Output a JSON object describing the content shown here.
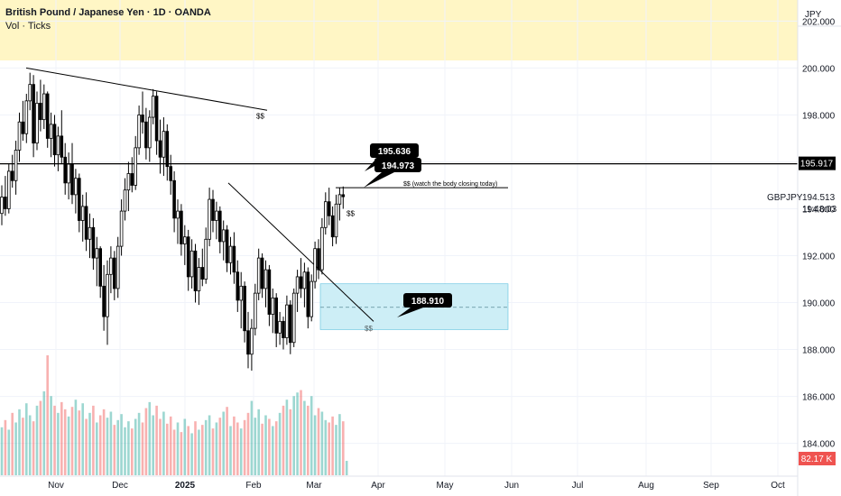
{
  "header": {
    "title": "British Pound / Japanese Yen · 1D · OANDA",
    "subtitle": "Vol · Ticks"
  },
  "axis": {
    "currency": "JPY"
  },
  "symbol": {
    "name": "GBPJPY",
    "price": "194.513",
    "countdown": "11:48:03"
  },
  "volume_badge": "82.17 K",
  "colors": {
    "up": "#26a69a",
    "down": "#ef5350",
    "highlight_band": "#fff6c5",
    "zone_fill": "#cdeef6",
    "zone_border": "#5bc0de",
    "callout_bg": "#000000",
    "line": "#000000"
  },
  "chart_data": {
    "type": "candlestick",
    "title": "British Pound / Japanese Yen · 1D · OANDA",
    "y_ticks": [
      184,
      186,
      188,
      190,
      192,
      194,
      196,
      198,
      200,
      202
    ],
    "ylim": [
      182.6,
      202.9
    ],
    "x_tick_labels": [
      "Nov",
      "Dec",
      "2025",
      "Feb",
      "Mar",
      "Apr",
      "May",
      "Jun",
      "Jul",
      "Aug",
      "Sep",
      "Oct"
    ],
    "horizontal_level": {
      "value": 195.917,
      "label": "195.917"
    },
    "callouts": [
      {
        "label": "195.636",
        "value": 195.636
      },
      {
        "label": "194.973",
        "value": 194.973
      },
      {
        "label": "188.910",
        "value": 188.91
      }
    ],
    "annotations": [
      "$$ (watch the body closing today)",
      "$$",
      "$$",
      "$$"
    ],
    "demand_zone": {
      "top": 190.8,
      "mid": 189.8,
      "bottom": 188.85
    },
    "candles": [
      [
        193.8,
        195.0,
        193.3,
        194.5
      ],
      [
        194.5,
        195.4,
        193.7,
        194.0
      ],
      [
        194.0,
        195.9,
        193.8,
        195.6
      ],
      [
        195.6,
        196.3,
        194.9,
        195.2
      ],
      [
        195.2,
        196.9,
        194.6,
        196.5
      ],
      [
        196.5,
        198.1,
        196.0,
        197.7
      ],
      [
        197.7,
        198.6,
        196.9,
        197.2
      ],
      [
        197.2,
        198.9,
        196.8,
        198.6
      ],
      [
        198.6,
        199.8,
        198.2,
        199.3
      ],
      [
        199.3,
        199.7,
        196.2,
        196.8
      ],
      [
        196.8,
        199.0,
        196.5,
        198.5
      ],
      [
        198.5,
        199.5,
        197.3,
        197.8
      ],
      [
        197.8,
        199.3,
        197.4,
        198.9
      ],
      [
        198.9,
        199.0,
        196.6,
        197.0
      ],
      [
        197.0,
        198.1,
        196.2,
        197.6
      ],
      [
        197.6,
        198.0,
        195.8,
        196.3
      ],
      [
        196.3,
        197.5,
        195.6,
        197.1
      ],
      [
        197.1,
        198.2,
        195.9,
        196.2
      ],
      [
        196.2,
        196.8,
        194.6,
        195.1
      ],
      [
        195.1,
        196.4,
        194.4,
        195.9
      ],
      [
        195.9,
        196.8,
        194.2,
        194.6
      ],
      [
        194.6,
        195.7,
        193.8,
        195.3
      ],
      [
        195.3,
        195.5,
        193.0,
        193.5
      ],
      [
        193.5,
        194.6,
        192.6,
        194.1
      ],
      [
        194.1,
        194.7,
        192.2,
        192.7
      ],
      [
        192.7,
        193.8,
        191.9,
        193.2
      ],
      [
        193.2,
        193.6,
        191.4,
        191.9
      ],
      [
        191.9,
        192.8,
        190.7,
        192.3
      ],
      [
        192.3,
        192.4,
        190.2,
        190.7
      ],
      [
        190.7,
        191.6,
        188.8,
        189.4
      ],
      [
        189.4,
        191.8,
        188.2,
        191.2
      ],
      [
        191.2,
        192.4,
        190.4,
        191.9
      ],
      [
        191.9,
        192.2,
        190.1,
        190.6
      ],
      [
        190.6,
        192.8,
        190.2,
        192.4
      ],
      [
        192.4,
        194.4,
        192.0,
        193.9
      ],
      [
        193.9,
        195.3,
        193.5,
        194.8
      ],
      [
        194.8,
        196.0,
        193.9,
        195.5
      ],
      [
        195.5,
        196.2,
        194.7,
        195.0
      ],
      [
        195.0,
        197.1,
        194.8,
        196.6
      ],
      [
        196.6,
        198.4,
        196.3,
        198.0
      ],
      [
        198.0,
        199.0,
        197.2,
        197.7
      ],
      [
        197.7,
        198.3,
        196.1,
        196.6
      ],
      [
        196.6,
        198.2,
        196.0,
        197.9
      ],
      [
        197.9,
        199.1,
        197.6,
        198.8
      ],
      [
        198.8,
        199.0,
        196.3,
        196.9
      ],
      [
        196.9,
        197.8,
        195.5,
        196.2
      ],
      [
        196.2,
        197.9,
        195.4,
        197.3
      ],
      [
        197.3,
        197.6,
        195.2,
        195.8
      ],
      [
        195.8,
        196.3,
        194.6,
        195.2
      ],
      [
        195.2,
        195.6,
        193.0,
        193.6
      ],
      [
        193.6,
        194.4,
        192.5,
        193.9
      ],
      [
        193.9,
        194.2,
        192.0,
        192.5
      ],
      [
        192.5,
        193.3,
        191.6,
        192.8
      ],
      [
        192.8,
        193.1,
        190.5,
        191.1
      ],
      [
        191.1,
        192.7,
        190.6,
        192.2
      ],
      [
        192.2,
        192.5,
        190.0,
        190.5
      ],
      [
        190.5,
        191.9,
        189.9,
        191.5
      ],
      [
        191.5,
        192.3,
        190.7,
        191.0
      ],
      [
        191.0,
        193.2,
        190.8,
        192.7
      ],
      [
        192.7,
        194.9,
        192.4,
        194.4
      ],
      [
        194.4,
        194.8,
        193.0,
        193.5
      ],
      [
        193.5,
        194.3,
        192.7,
        193.9
      ],
      [
        193.9,
        194.1,
        192.1,
        192.6
      ],
      [
        192.6,
        193.5,
        191.8,
        193.1
      ],
      [
        193.1,
        193.3,
        191.3,
        191.7
      ],
      [
        191.7,
        192.8,
        191.2,
        192.4
      ],
      [
        192.4,
        193.0,
        190.8,
        191.3
      ],
      [
        191.3,
        191.8,
        189.6,
        190.1
      ],
      [
        190.1,
        191.3,
        188.9,
        190.7
      ],
      [
        190.7,
        190.9,
        188.3,
        188.8
      ],
      [
        188.8,
        189.6,
        187.2,
        187.8
      ],
      [
        187.8,
        189.3,
        187.1,
        188.9
      ],
      [
        188.9,
        190.8,
        188.6,
        190.4
      ],
      [
        190.4,
        192.3,
        190.1,
        191.9
      ],
      [
        191.9,
        192.1,
        190.2,
        190.6
      ],
      [
        190.6,
        191.8,
        189.8,
        191.4
      ],
      [
        191.4,
        191.6,
        189.0,
        189.5
      ],
      [
        189.5,
        190.6,
        188.7,
        190.2
      ],
      [
        190.2,
        190.4,
        188.1,
        188.7
      ],
      [
        188.7,
        189.6,
        188.2,
        189.2
      ],
      [
        189.2,
        189.4,
        188.0,
        188.5
      ],
      [
        188.5,
        190.3,
        188.2,
        189.9
      ],
      [
        189.9,
        190.1,
        187.8,
        188.3
      ],
      [
        188.3,
        190.6,
        188.1,
        190.4
      ],
      [
        190.4,
        191.4,
        189.6,
        191.1
      ],
      [
        191.1,
        191.9,
        190.2,
        190.6
      ],
      [
        190.6,
        191.7,
        189.8,
        191.3
      ],
      [
        191.3,
        191.5,
        188.9,
        189.4
      ],
      [
        189.4,
        191.2,
        189.2,
        190.9
      ],
      [
        190.9,
        192.6,
        190.6,
        192.3
      ],
      [
        192.3,
        192.7,
        191.0,
        191.4
      ],
      [
        191.4,
        193.6,
        191.2,
        193.2
      ],
      [
        193.2,
        194.7,
        192.9,
        194.3
      ],
      [
        194.3,
        194.9,
        193.3,
        193.7
      ],
      [
        193.7,
        194.1,
        192.4,
        192.8
      ],
      [
        192.8,
        194.6,
        192.5,
        194.2
      ],
      [
        194.2,
        194.9,
        193.5,
        194.6
      ],
      [
        194.6,
        194.95,
        194.0,
        194.513
      ]
    ],
    "volume": [
      0.4,
      0.46,
      0.38,
      0.52,
      0.44,
      0.55,
      0.48,
      0.6,
      0.5,
      0.45,
      0.58,
      0.62,
      0.7,
      1.0,
      0.66,
      0.58,
      0.52,
      0.61,
      0.55,
      0.49,
      0.57,
      0.63,
      0.54,
      0.6,
      0.47,
      0.52,
      0.58,
      0.44,
      0.5,
      0.55,
      0.48,
      0.53,
      0.42,
      0.46,
      0.51,
      0.4,
      0.45,
      0.39,
      0.47,
      0.52,
      0.44,
      0.56,
      0.61,
      0.5,
      0.58,
      0.47,
      0.53,
      0.43,
      0.49,
      0.38,
      0.44,
      0.36,
      0.47,
      0.41,
      0.35,
      0.45,
      0.38,
      0.42,
      0.46,
      0.5,
      0.39,
      0.44,
      0.48,
      0.53,
      0.57,
      0.41,
      0.49,
      0.44,
      0.39,
      0.46,
      0.52,
      0.62,
      0.48,
      0.55,
      0.43,
      0.5,
      0.47,
      0.41,
      0.45,
      0.52,
      0.58,
      0.63,
      0.55,
      0.66,
      0.69,
      0.71,
      0.62,
      0.58,
      0.66,
      0.5,
      0.56,
      0.53,
      0.46,
      0.44,
      0.49,
      0.42,
      0.51,
      0.45,
      0.12
    ]
  }
}
